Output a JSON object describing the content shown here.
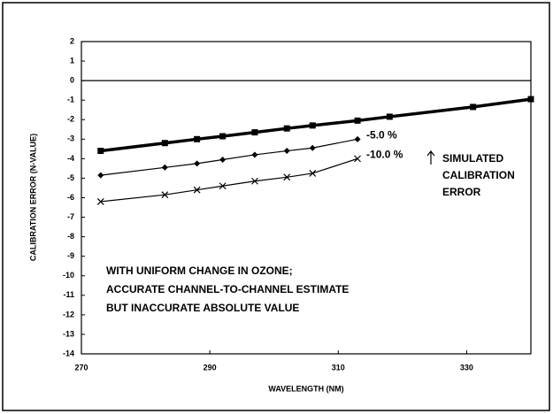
{
  "chart_data": {
    "type": "line",
    "xlabel": "WAVELENGTH (NM)",
    "ylabel": "CALIBRATION ERROR (N-VALUE)",
    "xlim": [
      270,
      340
    ],
    "xticks": [
      270,
      290,
      310,
      330
    ],
    "ylim": [
      -14,
      2
    ],
    "yticks": [
      -14,
      -13,
      -12,
      -11,
      -10,
      -9,
      -8,
      -7,
      -6,
      -5,
      -4,
      -3,
      -2,
      -1,
      0,
      1,
      2
    ],
    "series": [
      {
        "color": "#000000",
        "marker": "square",
        "x": [
          273,
          283,
          288,
          292,
          297,
          302,
          306,
          313,
          318,
          331,
          340
        ],
        "values": [
          -3.6,
          -3.2,
          -3.0,
          -2.85,
          -2.65,
          -2.45,
          -2.3,
          -2.05,
          -1.85,
          -1.35,
          -0.95
        ]
      },
      {
        "name": "-5.0 %",
        "color": "#000000",
        "marker": "diamond",
        "x": [
          273,
          283,
          288,
          292,
          297,
          302,
          306,
          313
        ],
        "values": [
          -4.85,
          -4.45,
          -4.25,
          -4.05,
          -3.8,
          -3.6,
          -3.45,
          -3.0
        ]
      },
      {
        "name": "-10.0 %",
        "color": "#000000",
        "marker": "cross",
        "x": [
          273,
          283,
          288,
          292,
          297,
          302,
          306,
          313
        ],
        "values": [
          -6.2,
          -5.85,
          -5.6,
          -5.4,
          -5.15,
          -4.95,
          -4.75,
          -4.0
        ]
      }
    ],
    "annotations": [
      {
        "lines": [
          "SIMULATED",
          "CALIBRATION",
          "ERROR"
        ]
      },
      {
        "lines": [
          "WITH UNIFORM CHANGE IN OZONE;",
          "ACCURATE CHANNEL-TO-CHANNEL ESTIMATE",
          "BUT INACCURATE ABSOLUTE VALUE"
        ]
      }
    ]
  }
}
